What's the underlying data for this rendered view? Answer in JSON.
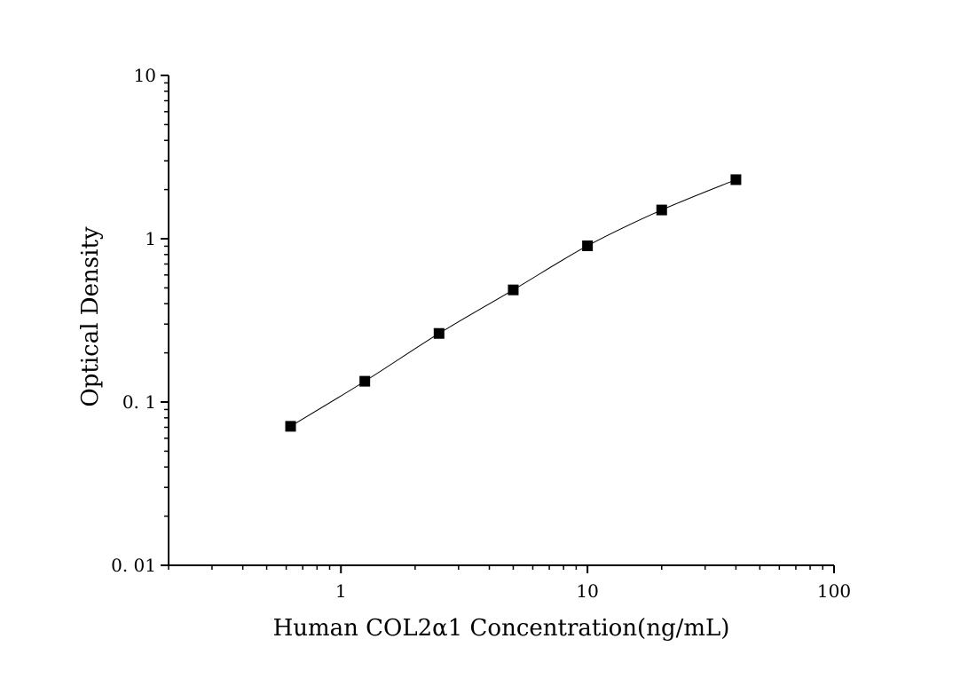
{
  "chart_data": {
    "type": "scatter",
    "title": "",
    "xlabel": "Human COL2α1 Concentration(ng/mL)",
    "ylabel": "Optical Density",
    "xscale": "log",
    "yscale": "log",
    "xlim": [
      0.2,
      100
    ],
    "ylim": [
      0.01,
      10
    ],
    "x_ticks": [
      {
        "value": 1,
        "label": "1"
      },
      {
        "value": 10,
        "label": "10"
      },
      {
        "value": 100,
        "label": "100"
      }
    ],
    "y_ticks": [
      {
        "value": 0.01,
        "label": "0. 01"
      },
      {
        "value": 0.1,
        "label": "0. 1"
      },
      {
        "value": 1,
        "label": "1"
      },
      {
        "value": 10,
        "label": "10"
      }
    ],
    "grid": false,
    "legend": "none",
    "marker": "square",
    "fit_line": true,
    "series": [
      {
        "x": [
          0.625,
          1.25,
          2.5,
          5,
          10,
          20,
          40
        ],
        "y": [
          0.071,
          0.134,
          0.263,
          0.486,
          0.905,
          1.5,
          2.3
        ]
      }
    ],
    "colors": {
      "marker": "#000000",
      "line": "#000000",
      "axis": "#000000"
    }
  }
}
